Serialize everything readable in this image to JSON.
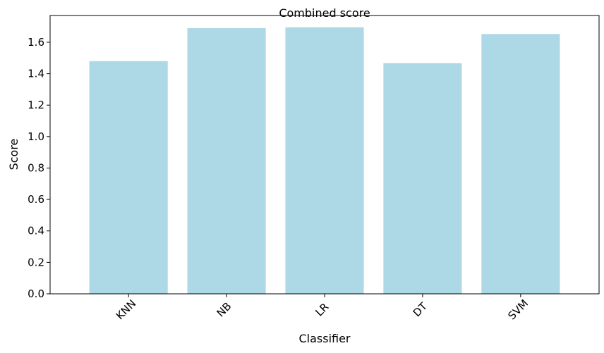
{
  "chart_data": {
    "type": "bar",
    "title": "Combined score",
    "xlabel": "Classifier",
    "ylabel": "Score",
    "categories": [
      "KNN",
      "NB",
      "LR",
      "DT",
      "SVM"
    ],
    "values": [
      1.48,
      1.69,
      1.695,
      1.467,
      1.652
    ],
    "ylim": [
      0,
      1.77
    ],
    "yticks": [
      "0.0",
      "0.2",
      "0.4",
      "0.6",
      "0.8",
      "1.0",
      "1.2",
      "1.4",
      "1.6"
    ],
    "bar_color": "#add8e6",
    "grid": false,
    "legend": "none"
  }
}
